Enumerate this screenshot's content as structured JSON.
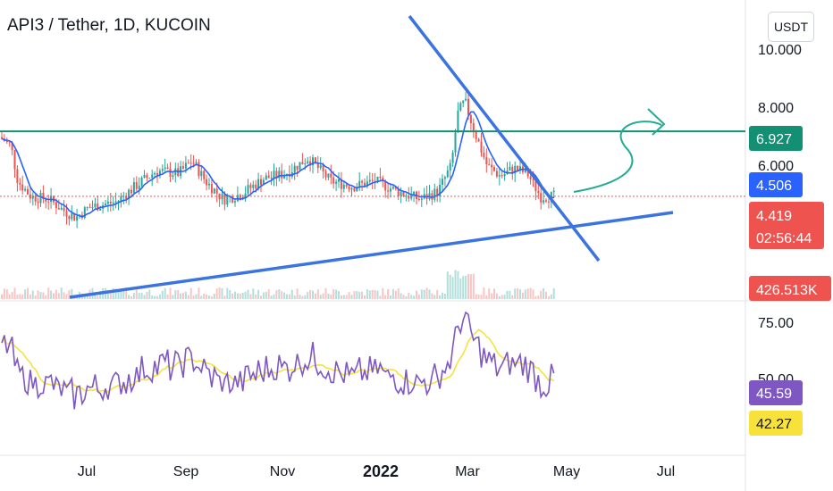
{
  "header": {
    "title": "API3 / Tether, 1D, KUCOIN",
    "currency_button": "USDT"
  },
  "colors": {
    "up": "#26a69a",
    "down": "#ef5350",
    "ma": "#2962ff",
    "trendline": "#3b74e0",
    "resistance": "#138f74",
    "rsi": "#7e57c2",
    "rsi_ma": "#f6e23b",
    "arrow": "#22ab94"
  },
  "chart_data": [
    {
      "type": "candlestick",
      "symbol": "API3 / Tether, 1D, KUCOIN",
      "ylim": [
        3.2,
        10.5
      ],
      "yticks": [
        "10.000",
        "8.000",
        "6.000"
      ],
      "xticks": [
        {
          "label": "Jul",
          "bold": false
        },
        {
          "label": "Sep",
          "bold": false
        },
        {
          "label": "Nov",
          "bold": false
        },
        {
          "label": "2022",
          "bold": true
        },
        {
          "label": "Mar",
          "bold": false
        },
        {
          "label": "May",
          "bold": false
        },
        {
          "label": "Jul",
          "bold": false
        }
      ],
      "last_price": 4.419,
      "countdown": "02:56:44",
      "ma_value": 4.506,
      "resistance_level": 6.927,
      "volume_label": "426.513K",
      "price_labels": {
        "resistance": "6.927",
        "ma": "4.506",
        "last": "4.419",
        "countdown": "02:56:44",
        "volume": "426.513K"
      }
    },
    {
      "type": "line",
      "indicator": "RSI",
      "ylim": [
        20,
        80
      ],
      "yticks": [
        "75.00",
        "50.00"
      ],
      "rsi_value": 45.59,
      "rsi_ma_value": 42.27,
      "labels": {
        "rsi": "45.59",
        "rsi_ma": "42.27"
      }
    }
  ]
}
